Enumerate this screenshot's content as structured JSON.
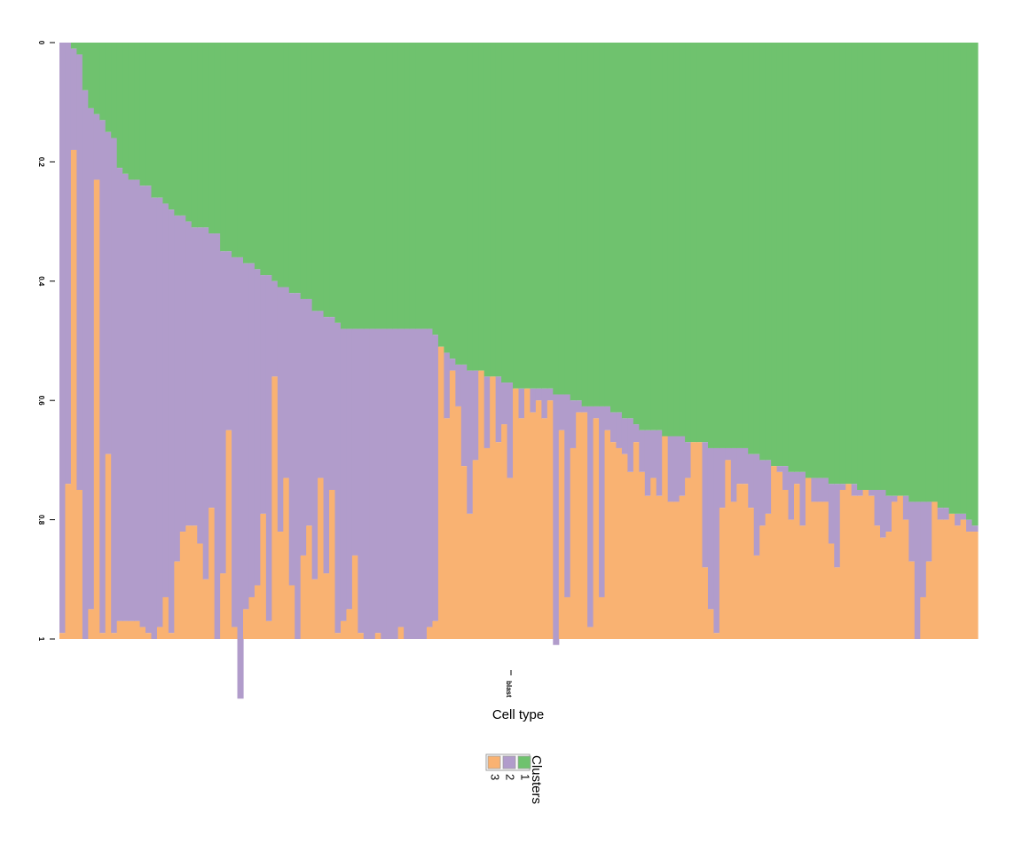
{
  "colors": {
    "cluster1": "#6FC26E",
    "cluster2": "#B19CCB",
    "cluster3": "#F9B272",
    "legend_border": "#9E9E9E"
  },
  "chart_data": {
    "type": "bar",
    "stacked": true,
    "orientation": "vertical",
    "xlabel": "Cell type",
    "x_tick_labels": [
      "blast"
    ],
    "y_ticks": [
      "0",
      "0.2",
      "0.4",
      "0.6",
      "0.8",
      "1"
    ],
    "ylim": [
      0,
      1
    ],
    "y_inverted": true,
    "legend": {
      "title": "Clusters",
      "labels": [
        "1",
        "2",
        "3"
      ],
      "placement": "bottom"
    },
    "n_samples": 160,
    "series": [
      {
        "name": "1",
        "stack_order": "top",
        "values": [
          0.0,
          0.0,
          0.01,
          0.02,
          0.08,
          0.11,
          0.12,
          0.13,
          0.15,
          0.16,
          0.21,
          0.22,
          0.23,
          0.23,
          0.24,
          0.24,
          0.26,
          0.26,
          0.27,
          0.28,
          0.29,
          0.29,
          0.3,
          0.31,
          0.31,
          0.31,
          0.32,
          0.32,
          0.35,
          0.35,
          0.36,
          0.36,
          0.37,
          0.37,
          0.38,
          0.39,
          0.39,
          0.4,
          0.41,
          0.41,
          0.42,
          0.42,
          0.43,
          0.43,
          0.45,
          0.45,
          0.46,
          0.46,
          0.47,
          0.48,
          0.48,
          0.48,
          0.48,
          0.48,
          0.48,
          0.48,
          0.48,
          0.48,
          0.48,
          0.48,
          0.48,
          0.48,
          0.48,
          0.48,
          0.48,
          0.49,
          0.51,
          0.52,
          0.53,
          0.54,
          0.54,
          0.55,
          0.55,
          0.55,
          0.56,
          0.56,
          0.56,
          0.57,
          0.57,
          0.58,
          0.58,
          0.58,
          0.58,
          0.58,
          0.58,
          0.58,
          0.59,
          0.59,
          0.59,
          0.6,
          0.6,
          0.61,
          0.61,
          0.61,
          0.61,
          0.61,
          0.62,
          0.62,
          0.63,
          0.63,
          0.64,
          0.65,
          0.65,
          0.65,
          0.65,
          0.66,
          0.66,
          0.66,
          0.66,
          0.67,
          0.67,
          0.67,
          0.67,
          0.68,
          0.68,
          0.68,
          0.68,
          0.68,
          0.68,
          0.68,
          0.69,
          0.69,
          0.7,
          0.7,
          0.71,
          0.71,
          0.71,
          0.72,
          0.72,
          0.72,
          0.73,
          0.73,
          0.73,
          0.73,
          0.74,
          0.74,
          0.74,
          0.74,
          0.74,
          0.75,
          0.75,
          0.75,
          0.75,
          0.75,
          0.76,
          0.76,
          0.76,
          0.76,
          0.77,
          0.77,
          0.77,
          0.77,
          0.77,
          0.78,
          0.78,
          0.79,
          0.79,
          0.79,
          0.8,
          0.81
        ]
      },
      {
        "name": "2",
        "stack_order": "middle",
        "values": [
          0.99,
          0.74,
          0.17,
          0.73,
          0.92,
          0.84,
          0.11,
          0.86,
          0.54,
          0.83,
          0.76,
          0.75,
          0.74,
          0.74,
          0.74,
          0.75,
          0.74,
          0.72,
          0.66,
          0.71,
          0.58,
          0.53,
          0.51,
          0.5,
          0.53,
          0.59,
          0.46,
          0.68,
          0.54,
          0.3,
          0.62,
          0.74,
          0.58,
          0.56,
          0.53,
          0.4,
          0.58,
          0.16,
          0.41,
          0.32,
          0.49,
          0.58,
          0.43,
          0.38,
          0.45,
          0.28,
          0.43,
          0.29,
          0.52,
          0.49,
          0.47,
          0.38,
          0.51,
          0.52,
          0.52,
          0.51,
          0.52,
          0.52,
          0.52,
          0.5,
          0.52,
          0.52,
          0.52,
          0.52,
          0.5,
          0.48,
          0.0,
          0.11,
          0.02,
          0.07,
          0.17,
          0.24,
          0.15,
          0.0,
          0.12,
          0.0,
          0.11,
          0.07,
          0.16,
          0.0,
          0.05,
          0.0,
          0.04,
          0.02,
          0.05,
          0.02,
          0.42,
          0.06,
          0.34,
          0.08,
          0.02,
          0.01,
          0.37,
          0.02,
          0.32,
          0.04,
          0.05,
          0.06,
          0.06,
          0.09,
          0.03,
          0.07,
          0.11,
          0.08,
          0.11,
          0.0,
          0.11,
          0.11,
          0.1,
          0.06,
          0.0,
          0.0,
          0.21,
          0.27,
          0.31,
          0.1,
          0.02,
          0.09,
          0.06,
          0.06,
          0.09,
          0.17,
          0.11,
          0.09,
          0.0,
          0.01,
          0.04,
          0.08,
          0.02,
          0.09,
          0.0,
          0.04,
          0.04,
          0.04,
          0.1,
          0.14,
          0.01,
          0.0,
          0.02,
          0.01,
          0.0,
          0.01,
          0.06,
          0.08,
          0.06,
          0.01,
          0.0,
          0.04,
          0.1,
          0.23,
          0.16,
          0.1,
          0.0,
          0.02,
          0.02,
          0.0,
          0.02,
          0.01,
          0.02,
          0.01
        ]
      },
      {
        "name": "3",
        "stack_order": "bottom",
        "values": [
          0.01,
          0.26,
          0.82,
          0.25,
          0.0,
          0.05,
          0.77,
          0.01,
          0.31,
          0.01,
          0.03,
          0.03,
          0.03,
          0.03,
          0.02,
          0.01,
          0.0,
          0.02,
          0.07,
          0.01,
          0.13,
          0.18,
          0.19,
          0.19,
          0.16,
          0.1,
          0.22,
          0.0,
          0.11,
          0.35,
          0.02,
          0.0,
          0.05,
          0.07,
          0.09,
          0.21,
          0.03,
          0.44,
          0.0,
          0.27,
          0.09,
          0.0,
          0.15,
          0.19,
          0.1,
          0.27,
          0.11,
          0.25,
          0.01,
          0.03,
          0.05,
          0.14,
          0.01,
          0.0,
          0.0,
          0.01,
          0.0,
          0.0,
          0.0,
          0.02,
          0.0,
          0.0,
          0.0,
          0.0,
          0.02,
          0.03,
          0.49,
          0.37,
          0.45,
          0.39,
          0.29,
          0.21,
          0.3,
          0.45,
          0.32,
          0.44,
          0.33,
          0.36,
          0.27,
          0.42,
          0.37,
          0.42,
          0.38,
          0.4,
          0.37,
          0.4,
          0.0,
          0.35,
          0.07,
          0.32,
          0.38,
          0.38,
          0.02,
          0.37,
          0.07,
          0.35,
          0.33,
          0.32,
          0.31,
          0.28,
          0.33,
          0.28,
          0.24,
          0.27,
          0.24,
          0.34,
          0.23,
          0.23,
          0.24,
          0.27,
          0.33,
          0.33,
          0.12,
          0.05,
          0.01,
          0.22,
          0.3,
          0.23,
          0.26,
          0.26,
          0.22,
          0.14,
          0.19,
          0.21,
          0.29,
          0.28,
          0.25,
          0.2,
          0.26,
          0.19,
          0.27,
          0.23,
          0.23,
          0.23,
          0.16,
          0.11,
          0.24,
          0.25,
          0.23,
          0.24,
          0.25,
          0.24,
          0.19,
          0.17,
          0.18,
          0.23,
          0.24,
          0.2,
          0.13,
          0.0,
          0.07,
          0.13,
          0.23,
          0.2,
          0.2,
          0.22,
          0.2,
          0.2,
          0.19,
          0.18
        ]
      }
    ]
  }
}
